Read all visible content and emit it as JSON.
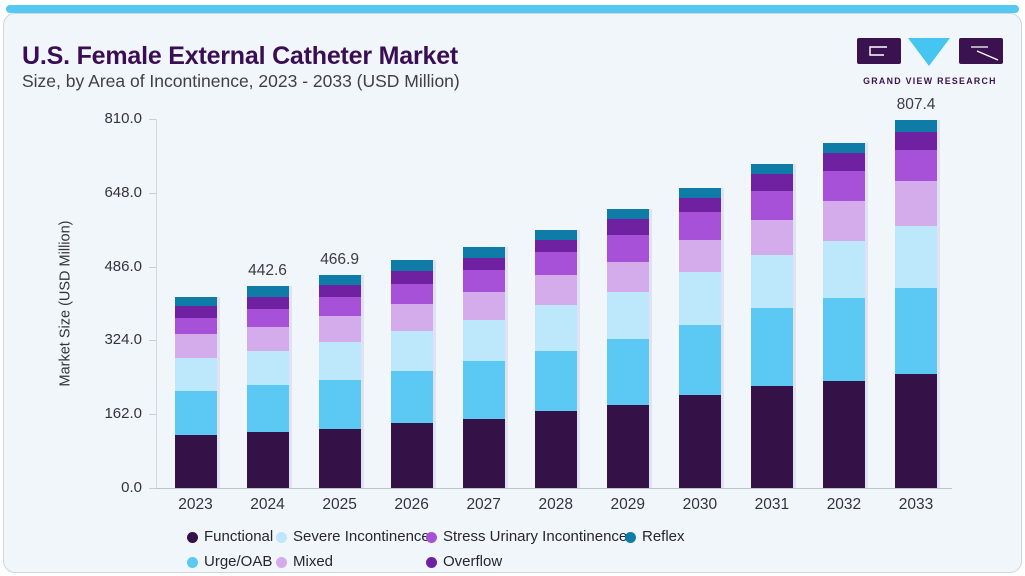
{
  "page": {
    "top_bar_color": "#55C8F2",
    "card_bg": "#F1F6FA",
    "card_border_color": "#C8D7E2",
    "title_color": "#3A0E55"
  },
  "logo": {
    "name": "Grand View Research",
    "text": "GRAND VIEW RESEARCH",
    "dark_color": "#3A1250",
    "accent_color": "#45C6F0"
  },
  "chart_data": {
    "type": "bar",
    "stacked": true,
    "title": "U.S. Female External Catheter Market",
    "subtitle": "Size, by Area of Incontinence, 2023 - 2033 (USD Million)",
    "ylabel": "Market Size (USD Million)",
    "xlabel": "",
    "ylim": [
      0,
      810
    ],
    "yticks": [
      0,
      162,
      324,
      486,
      648,
      810
    ],
    "ytick_labels": [
      "0.0",
      "162.0",
      "324.0",
      "486.0",
      "648.0",
      "810.0"
    ],
    "grid": "off",
    "legend_position": "bottom",
    "categories": [
      "2023",
      "2024",
      "2025",
      "2026",
      "2027",
      "2028",
      "2029",
      "2030",
      "2031",
      "2032",
      "2033"
    ],
    "series": [
      {
        "name": "Functional",
        "color": "#341147",
        "values": [
          115.3,
          122.9,
          129.7,
          143.5,
          150.6,
          169.4,
          181.9,
          204.0,
          224.0,
          235.3,
          250.4
        ]
      },
      {
        "name": "Urge/OAB",
        "color": "#5BC9F4",
        "values": [
          98.1,
          103.4,
          107.8,
          113.7,
          127.1,
          130.8,
          145.2,
          154.4,
          170.0,
          181.9,
          189.6
        ]
      },
      {
        "name": "Severe Incontinence",
        "color": "#BDE7FA",
        "values": [
          72.0,
          75.2,
          82.5,
          88.0,
          91.1,
          102.1,
          103.5,
          115.3,
          118.0,
          124.0,
          135.7
        ]
      },
      {
        "name": "Mixed",
        "color": "#D4ACEC",
        "values": [
          51.8,
          52.7,
          56.6,
          57.9,
          61.9,
          64.2,
          65.2,
          69.9,
          77.0,
          89.4,
          98.3
        ]
      },
      {
        "name": "Stress Urinary Incontinence",
        "color": "#A750D8",
        "values": [
          36.9,
          37.6,
          43.2,
          45.7,
          47.8,
          51.1,
          60.2,
          61.9,
          64.0,
          65.9,
          67.9
        ]
      },
      {
        "name": "Overflow",
        "color": "#7021A2",
        "values": [
          25.9,
          27.3,
          25.9,
          27.3,
          26.8,
          27.3,
          33.9,
          31.5,
          36.0,
          39.3,
          39.8
        ]
      },
      {
        "name": "Reflex",
        "color": "#0F7CA8",
        "values": [
          18.8,
          23.5,
          21.2,
          23.5,
          24.2,
          22.1,
          23.5,
          21.2,
          22.0,
          21.2,
          25.7
        ]
      }
    ],
    "bar_total_labels": {
      "2024": "442.6",
      "2025": "466.9",
      "2033": "807.4"
    }
  },
  "legend": {
    "rows": [
      [
        {
          "label": "Functional",
          "color": "#341147"
        },
        {
          "label": "Severe Incontinence",
          "color": "#BDE7FA"
        },
        {
          "label": "Stress Urinary Incontinence",
          "color": "#A750D8"
        },
        {
          "label": "Reflex",
          "color": "#0F7CA8"
        }
      ],
      [
        {
          "label": "Urge/OAB",
          "color": "#5BC9F4"
        },
        {
          "label": "Mixed",
          "color": "#D4ACEC"
        },
        {
          "label": "Overflow",
          "color": "#7021A2"
        }
      ]
    ]
  }
}
